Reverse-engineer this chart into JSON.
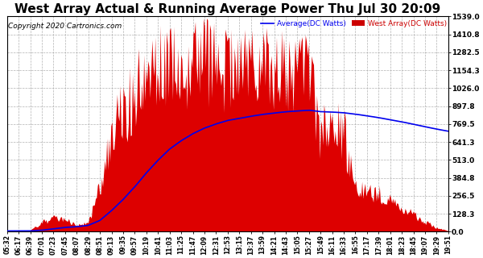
{
  "title": "West Array Actual & Running Average Power Thu Jul 30 20:09",
  "copyright": "Copyright 2020 Cartronics.com",
  "legend_avg": "Average(DC Watts)",
  "legend_west": "West Array(DC Watts)",
  "ymin": 0.0,
  "ymax": 1539.0,
  "yticks": [
    0.0,
    128.3,
    256.5,
    384.8,
    513.0,
    641.3,
    769.5,
    897.8,
    1026.0,
    1154.3,
    1282.5,
    1410.8,
    1539.0
  ],
  "xtick_labels": [
    "05:32",
    "06:17",
    "06:39",
    "07:01",
    "07:23",
    "07:45",
    "08:07",
    "08:29",
    "08:51",
    "09:13",
    "09:35",
    "09:57",
    "10:19",
    "10:41",
    "11:03",
    "11:25",
    "11:47",
    "12:09",
    "12:31",
    "12:53",
    "13:15",
    "13:37",
    "13:59",
    "14:21",
    "14:43",
    "15:05",
    "15:27",
    "15:49",
    "16:11",
    "16:33",
    "16:55",
    "17:17",
    "17:39",
    "18:01",
    "18:23",
    "18:45",
    "19:07",
    "19:29",
    "19:51"
  ],
  "bg_color": "#ffffff",
  "grid_color": "#aaaaaa",
  "west_color": "#dd0000",
  "avg_color": "#0000ee",
  "title_color": "#000000",
  "title_fontsize": 11,
  "copyright_color": "#000000",
  "copyright_fontsize": 6.5,
  "legend_avg_color": "#0000ee",
  "legend_west_color": "#cc0000"
}
